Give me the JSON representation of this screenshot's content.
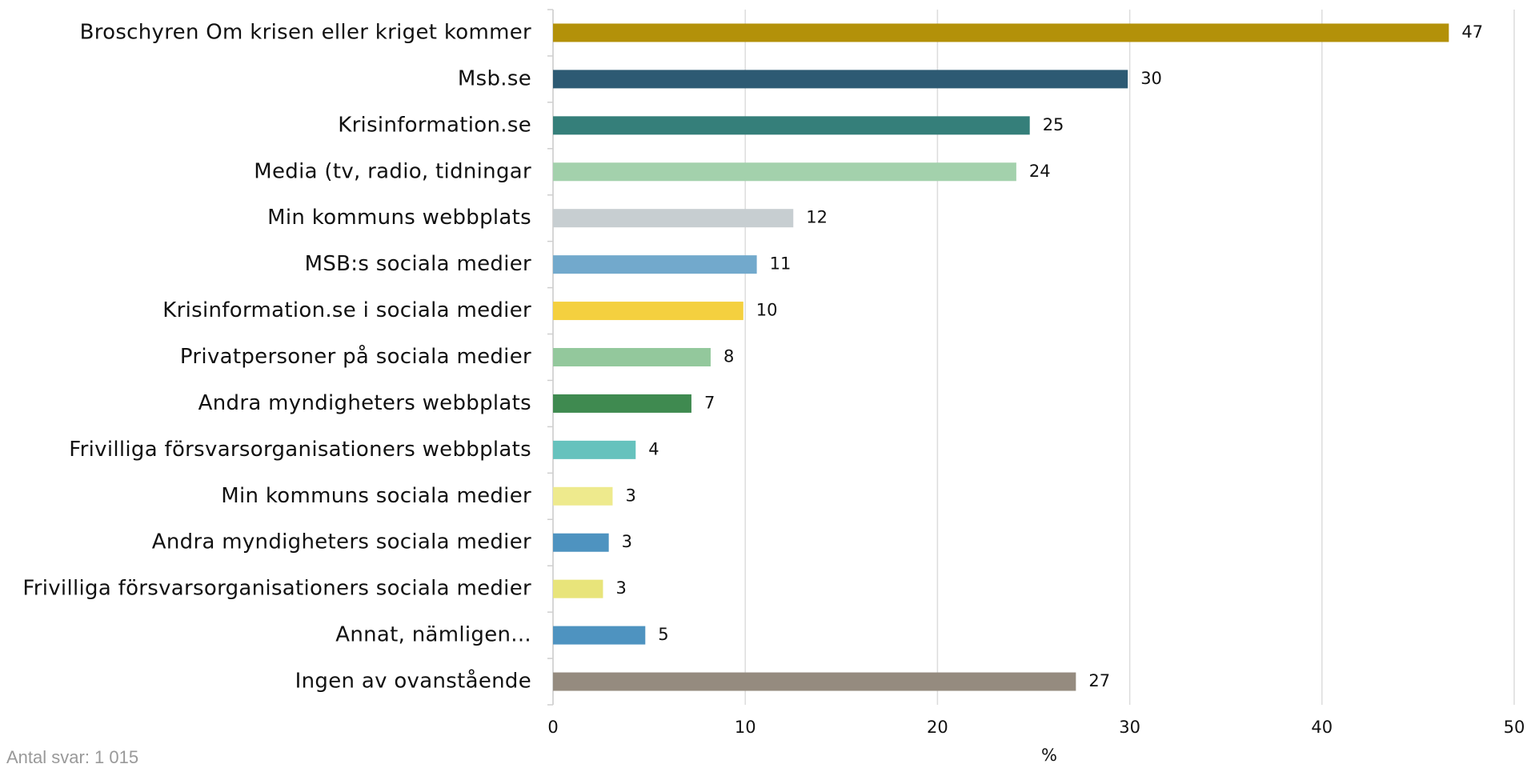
{
  "chart_data": {
    "type": "bar",
    "orientation": "horizontal",
    "categories": [
      "Broschyren Om krisen eller kriget kommer",
      "Msb.se",
      "Krisinformation.se",
      "Media (tv, radio, tidningar",
      "Min kommuns webbplats",
      "MSB:s sociala medier",
      "Krisinformation.se i sociala medier",
      "Privatpersoner på sociala medier",
      "Andra myndigheters webbplats",
      "Frivilliga försvarsorganisationers webbplats",
      "Min kommuns sociala medier",
      "Andra myndigheters sociala medier",
      "Frivilliga försvarsorganisationers sociala medier",
      "Annat, nämligen...",
      "Ingen av ovanstående"
    ],
    "values": [
      46.6,
      29.9,
      24.8,
      24.1,
      12.5,
      10.6,
      9.9,
      8.2,
      7.2,
      4.3,
      3.1,
      2.9,
      2.6,
      4.8,
      27.2
    ],
    "value_labels": [
      "47",
      "30",
      "25",
      "24",
      "12",
      "11",
      "10",
      "8",
      "7",
      "4",
      "3",
      "3",
      "3",
      "5",
      "27"
    ],
    "colors": [
      "#b39109",
      "#2d5a73",
      "#357f7a",
      "#a3d1ac",
      "#c7ced1",
      "#72a9cc",
      "#f4d03f",
      "#93c89c",
      "#3f8a50",
      "#66c2bd",
      "#eeea8d",
      "#4e93c0",
      "#e8e47a",
      "#4e93c0",
      "#958b7f"
    ],
    "xlim": [
      0,
      50
    ],
    "xticks": [
      0,
      10,
      20,
      30,
      40,
      50
    ],
    "grid": true,
    "xlabel": "%",
    "footnote": "Antal svar: 1 015"
  }
}
